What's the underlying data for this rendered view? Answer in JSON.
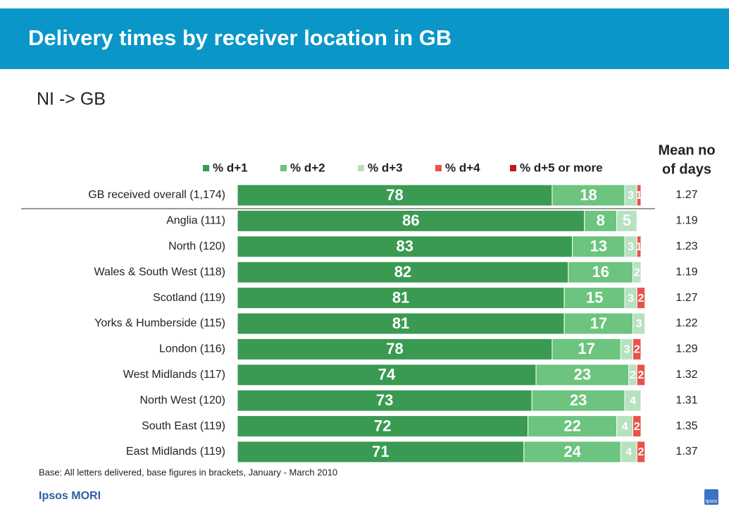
{
  "chart_data": {
    "type": "stacked_bar_horizontal",
    "title": "Delivery times by receiver location in GB",
    "subtitle": "NI -> GB",
    "categories": [
      "GB received overall (1,174)",
      "Anglia (111)",
      "North (120)",
      "Wales & South West (118)",
      "Scotland (119)",
      "Yorks & Humberside (115)",
      "London (116)",
      "West Midlands (117)",
      "North West (120)",
      "South East (119)",
      "East Midlands (119)"
    ],
    "series": [
      {
        "name": "% d+1",
        "color": "#3a9a52",
        "values": [
          78,
          86,
          83,
          82,
          81,
          81,
          78,
          74,
          73,
          72,
          71
        ]
      },
      {
        "name": "% d+2",
        "color": "#6cc47e",
        "values": [
          18,
          8,
          13,
          16,
          15,
          17,
          17,
          23,
          23,
          22,
          24
        ]
      },
      {
        "name": "% d+3",
        "color": "#b6e2bf",
        "values": [
          3,
          5,
          3,
          2,
          3,
          3,
          3,
          2,
          4,
          4,
          4
        ]
      },
      {
        "name": "% d+4",
        "color": "#e8524a",
        "values": [
          1,
          null,
          1,
          null,
          2,
          null,
          2,
          2,
          null,
          2,
          2
        ]
      },
      {
        "name": "% d+5 or more",
        "color": "#c4161c",
        "values": [
          null,
          null,
          null,
          null,
          null,
          null,
          null,
          null,
          null,
          null,
          null
        ]
      }
    ],
    "xlim": [
      0,
      100
    ],
    "mean_header": [
      "Mean no",
      "of days"
    ],
    "means": [
      1.27,
      1.19,
      1.23,
      1.19,
      1.27,
      1.22,
      1.29,
      1.32,
      1.31,
      1.35,
      1.37
    ],
    "footnote": "Base: All letters delivered, base figures in brackets, January - March 2010",
    "brand": "Ipsos MORI",
    "logo": "Ipsos"
  }
}
